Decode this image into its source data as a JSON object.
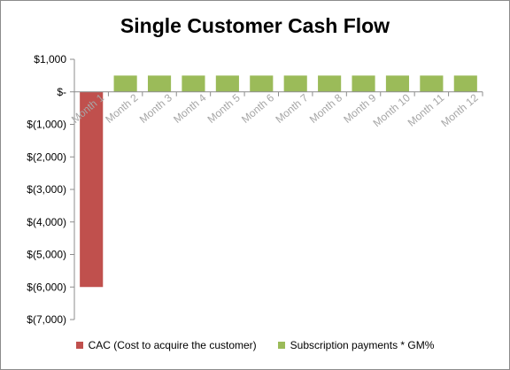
{
  "chart_data": {
    "type": "bar",
    "title": "Single Customer Cash Flow",
    "xlabel": "",
    "ylabel": "",
    "categories": [
      "Month 1",
      "Month 2",
      "Month 3",
      "Month 4",
      "Month 5",
      "Month 6",
      "Month 7",
      "Month 8",
      "Month 9",
      "Month 10",
      "Month 11",
      "Month 12"
    ],
    "series": [
      {
        "name": "CAC (Cost to acquire the customer)",
        "color": "#c0504d",
        "values": [
          -6000,
          0,
          0,
          0,
          0,
          0,
          0,
          0,
          0,
          0,
          0,
          0
        ]
      },
      {
        "name": "Subscription payments * GM%",
        "color": "#9bbb59",
        "values": [
          0,
          500,
          500,
          500,
          500,
          500,
          500,
          500,
          500,
          500,
          500,
          500
        ]
      }
    ],
    "ylim": [
      -7000,
      1000
    ],
    "yticks": [
      1000,
      0,
      -1000,
      -2000,
      -3000,
      -4000,
      -5000,
      -6000,
      -7000
    ],
    "ytick_labels": [
      "$1,000",
      "$-",
      "$(1,000)",
      "$(2,000)",
      "$(3,000)",
      "$(4,000)",
      "$(5,000)",
      "$(6,000)",
      "$(7,000)"
    ],
    "stacked": true,
    "grid": false,
    "legend_position": "bottom"
  }
}
